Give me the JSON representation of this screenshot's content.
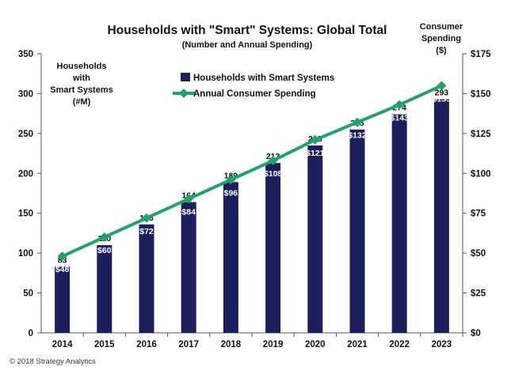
{
  "chart_data": {
    "type": "bar",
    "title": "Households with \"Smart\" Systems: Global Total",
    "subtitle": "(Number and Annual Spending)",
    "categories": [
      "2014",
      "2015",
      "2016",
      "2017",
      "2018",
      "2019",
      "2020",
      "2021",
      "2022",
      "2023"
    ],
    "series": [
      {
        "name": "Households with Smart Systems",
        "type": "bar",
        "axis": "left",
        "color": "#1b1f5c",
        "values": [
          83,
          110,
          136,
          164,
          189,
          213,
          235,
          255,
          274,
          293
        ],
        "labels": [
          "83",
          "110",
          "136",
          "164",
          "189",
          "213",
          "235",
          "255",
          "274",
          "293"
        ]
      },
      {
        "name": "Annual Consumer Spending",
        "type": "line",
        "axis": "right",
        "color": "#1fa36a",
        "marker": "diamond",
        "values": [
          48,
          60,
          72,
          84,
          96,
          108,
          121,
          132,
          143,
          155
        ],
        "labels": [
          "$48",
          "$60",
          "$72",
          "$84",
          "$96",
          "$108",
          "$121",
          "$132",
          "$143",
          "$155"
        ]
      }
    ],
    "y_left": {
      "label_lines": [
        "Households",
        "with",
        "Smart Systems",
        "(#M)"
      ],
      "ylim": [
        0,
        350
      ],
      "ticks": [
        "0",
        "50",
        "100",
        "150",
        "200",
        "250",
        "300",
        "350"
      ]
    },
    "y_right": {
      "label_lines": [
        "Consumer",
        "Spending",
        "($)"
      ],
      "ylim": [
        0,
        175
      ],
      "ticks": [
        "$0",
        "$25",
        "$50",
        "$75",
        "$100",
        "$125",
        "$150",
        "$175"
      ]
    },
    "grid": false,
    "legend": "top-center"
  },
  "footer": {
    "copyright": "© 2018 Strategy Analytics"
  }
}
